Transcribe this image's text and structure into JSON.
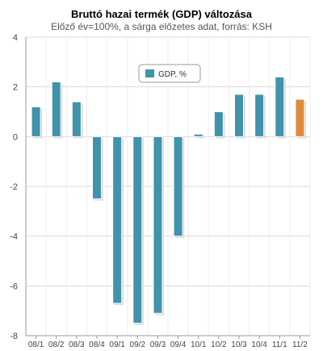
{
  "chart_data": {
    "type": "bar",
    "title": "Bruttó hazai termék (GDP) változása",
    "subtitle": "Előző év=100%, a sárga előzetes adat, forrás: KSH",
    "categories": [
      "08/1",
      "08/2",
      "08/3",
      "08/4",
      "09/1",
      "09/2",
      "09/3",
      "09/4",
      "10/1",
      "10/2",
      "10/3",
      "10/4",
      "11/1",
      "11/2"
    ],
    "series": [
      {
        "name": "GDP, %",
        "values": [
          1.2,
          2.2,
          1.4,
          -2.5,
          -6.7,
          -7.5,
          -7.1,
          -4.0,
          0.1,
          1.0,
          1.7,
          1.7,
          2.4,
          1.5
        ]
      }
    ],
    "preliminary_index": 13,
    "ylim": [
      -8,
      4
    ],
    "yticks": [
      4,
      2,
      0,
      -2,
      -4,
      -6,
      -8
    ],
    "grid": true,
    "legend_position": "top-center",
    "colors": {
      "bar": "#3f93ab",
      "preliminary": "#e08a3c",
      "grid": "#d9d9d9",
      "axis": "#999999"
    }
  }
}
